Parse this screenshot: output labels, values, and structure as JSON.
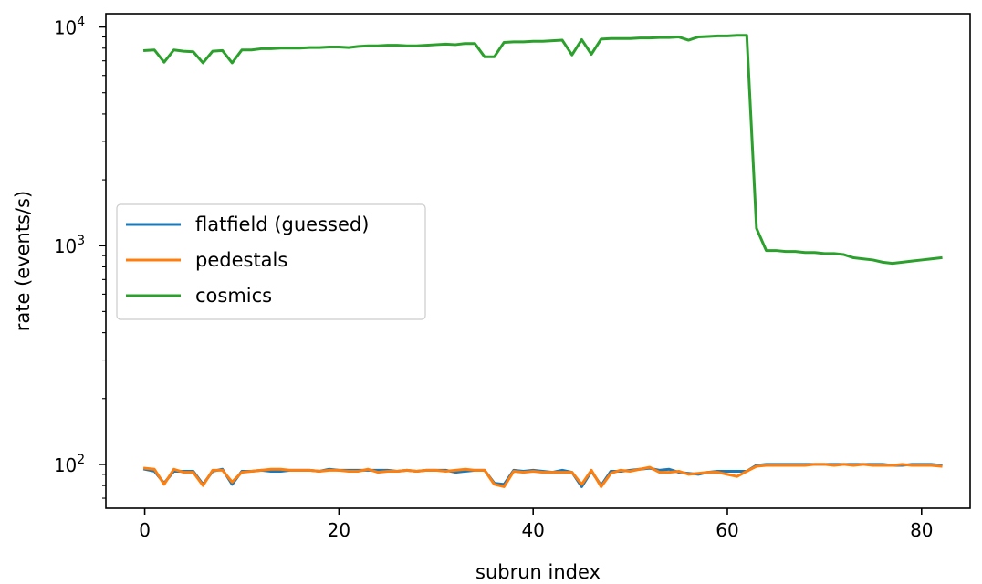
{
  "chart_data": {
    "type": "line",
    "title": "",
    "xlabel": "subrun index",
    "ylabel": "rate (events/s)",
    "yscale": "log",
    "xlim": [
      -4,
      85
    ],
    "ylim": [
      63,
      11500
    ],
    "xticks": [
      0,
      20,
      40,
      60,
      80
    ],
    "yticks": [
      {
        "value": 100,
        "base": "10",
        "exp": "2"
      },
      {
        "value": 1000,
        "base": "10",
        "exp": "3"
      },
      {
        "value": 10000,
        "base": "10",
        "exp": "4"
      }
    ],
    "grid": false,
    "legend_position": "center-left",
    "x": [
      0,
      1,
      2,
      3,
      4,
      5,
      6,
      7,
      8,
      9,
      10,
      11,
      12,
      13,
      14,
      15,
      16,
      17,
      18,
      19,
      20,
      21,
      22,
      23,
      24,
      25,
      26,
      27,
      28,
      29,
      30,
      31,
      32,
      33,
      34,
      35,
      36,
      37,
      38,
      39,
      40,
      41,
      42,
      43,
      44,
      45,
      46,
      47,
      48,
      49,
      50,
      51,
      52,
      53,
      54,
      55,
      56,
      57,
      58,
      59,
      60,
      61,
      62,
      63,
      64,
      65,
      66,
      67,
      68,
      69,
      70,
      71,
      72,
      73,
      74,
      75,
      76,
      77,
      78,
      79,
      80,
      81,
      82
    ],
    "series": [
      {
        "name": "flatfield (guessed)",
        "color": "#1f77b4",
        "values": [
          95,
          93,
          82,
          93,
          93,
          93,
          81,
          93,
          95,
          81,
          93,
          93,
          94,
          93,
          93,
          94,
          94,
          94,
          93,
          95,
          94,
          94,
          94,
          94,
          94,
          94,
          93,
          94,
          93,
          94,
          94,
          94,
          92,
          93,
          94,
          94,
          82,
          81,
          94,
          93,
          94,
          93,
          92,
          94,
          92,
          79,
          93,
          80,
          93,
          93,
          94,
          95,
          96,
          94,
          95,
          92,
          91,
          90,
          92,
          93,
          93,
          93,
          93,
          99,
          100,
          100,
          100,
          100,
          100,
          100,
          100,
          100,
          100,
          100,
          100,
          100,
          100,
          99,
          99,
          100,
          100,
          100,
          99
        ]
      },
      {
        "name": "pedestals",
        "color": "#ff7f0e",
        "values": [
          96,
          95,
          81,
          95,
          92,
          92,
          80,
          94,
          94,
          83,
          92,
          93,
          94,
          95,
          95,
          94,
          94,
          94,
          93,
          94,
          94,
          93,
          93,
          95,
          92,
          93,
          93,
          94,
          93,
          94,
          94,
          93,
          94,
          95,
          94,
          94,
          81,
          79,
          93,
          92,
          93,
          92,
          92,
          92,
          92,
          81,
          94,
          79,
          91,
          94,
          93,
          95,
          97,
          92,
          92,
          93,
          90,
          91,
          92,
          92,
          90,
          88,
          93,
          98,
          99,
          99,
          99,
          99,
          99,
          100,
          100,
          99,
          100,
          99,
          100,
          99,
          99,
          99,
          100,
          99,
          99,
          99,
          98
        ]
      },
      {
        "name": "cosmics",
        "color": "#2ca02c",
        "values": [
          7800,
          7850,
          6900,
          7850,
          7750,
          7700,
          6850,
          7750,
          7800,
          6850,
          7850,
          7850,
          7950,
          7950,
          8000,
          8000,
          8000,
          8050,
          8050,
          8100,
          8100,
          8050,
          8150,
          8200,
          8200,
          8250,
          8250,
          8200,
          8200,
          8250,
          8300,
          8350,
          8300,
          8400,
          8400,
          7300,
          7300,
          8500,
          8550,
          8550,
          8600,
          8600,
          8650,
          8700,
          7450,
          8750,
          7500,
          8800,
          8850,
          8850,
          8850,
          8900,
          8900,
          8950,
          8950,
          9000,
          8700,
          9000,
          9050,
          9100,
          9100,
          9150,
          9150,
          1200,
          950,
          950,
          940,
          940,
          930,
          930,
          920,
          920,
          910,
          880,
          870,
          860,
          840,
          830,
          840,
          850,
          860,
          870,
          880
        ]
      }
    ]
  }
}
